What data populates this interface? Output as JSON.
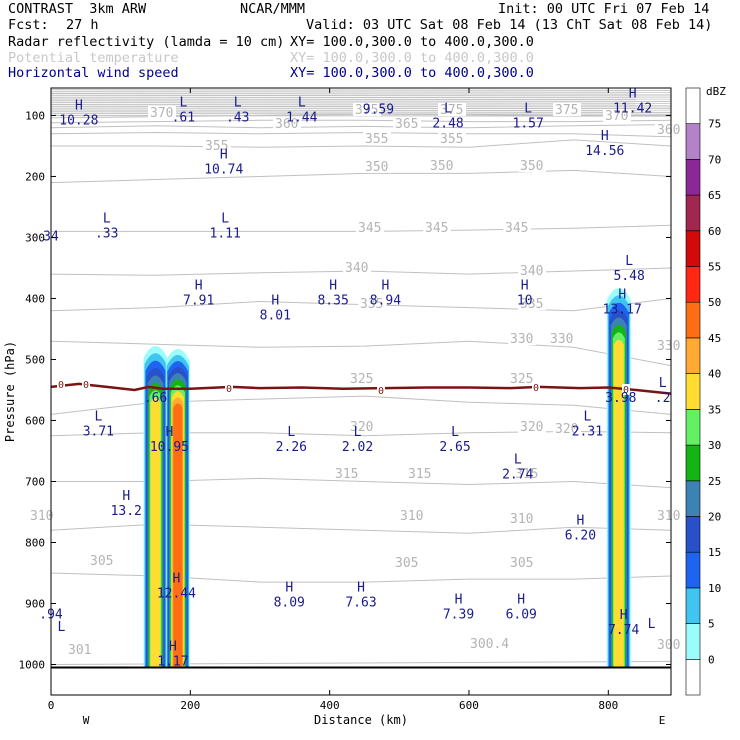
{
  "header": {
    "model": "CONTRAST  3km ARW",
    "org": "NCAR/MMM",
    "init": "Init: 00 UTC Fri 07 Feb 14",
    "fcst_label": "Fcst:",
    "fcst_value": "27 h",
    "valid": "Valid: 03 UTC Sat 08 Feb 14 (13 ChT Sat 08 Feb 14)"
  },
  "fields": [
    {
      "name": "Radar reflectivity (lamda = 10 cm)",
      "xy": "XY= 100.0,300.0 to 400.0,300.0",
      "color": "#000000"
    },
    {
      "name": "Potential temperature",
      "xy": "XY= 100.0,300.0 to 400.0,300.0",
      "color": "#c8c8c8"
    },
    {
      "name": "Horizontal wind speed",
      "xy": "XY= 100.0,300.0 to 400.0,300.0",
      "color": "#00008b"
    }
  ],
  "chart_data": {
    "type": "cross-section",
    "title": "Radar reflectivity, potential temperature, horizontal wind speed",
    "xlabel": "Distance (km)",
    "ylabel": "Pressure (hPa)",
    "xlim": [
      0,
      890
    ],
    "ylim": [
      1050,
      55
    ],
    "x_ticks": [
      0,
      200,
      400,
      600,
      800
    ],
    "y_ticks": [
      100,
      200,
      300,
      400,
      500,
      600,
      700,
      800,
      900,
      1000
    ],
    "west_label": "W",
    "east_label": "E",
    "colorbar": {
      "unit": "dBZ",
      "levels": [
        0,
        5,
        10,
        15,
        20,
        25,
        30,
        35,
        40,
        45,
        50,
        55,
        60,
        65,
        70,
        75
      ],
      "colors": [
        "#ffffff",
        "#9bfcfc",
        "#40c4f0",
        "#1e64f0",
        "#2850c8",
        "#3c82b4",
        "#14b414",
        "#64f064",
        "#ffdc32",
        "#ffaa32",
        "#ff6e14",
        "#ff2814",
        "#d20a0a",
        "#a02850",
        "#8c2896",
        "#b482c8",
        "#ffffff"
      ]
    },
    "reflectivity_cells": [
      {
        "x_center": 150,
        "top_hpa": 470,
        "max_dbz": 40
      },
      {
        "x_center": 182,
        "top_hpa": 475,
        "max_dbz": 50
      },
      {
        "x_center": 815,
        "top_hpa": 375,
        "max_dbz": 40
      }
    ],
    "freezing_level": {
      "label": "0",
      "x": [
        0,
        40,
        80,
        120,
        140,
        160,
        200,
        260,
        300,
        360,
        420,
        480,
        540,
        600,
        660,
        700,
        760,
        800,
        840,
        890
      ],
      "p": [
        545,
        540,
        545,
        550,
        545,
        548,
        548,
        545,
        547,
        546,
        548,
        547,
        546,
        546,
        547,
        545,
        547,
        546,
        550,
        556
      ]
    },
    "theta_contours": [
      {
        "label": "300.4",
        "x": [
          0,
          890
        ],
        "p": [
          1000,
          995
        ]
      },
      {
        "label": "305",
        "x": [
          0,
          150,
          300,
          450,
          600,
          750,
          890
        ],
        "p": [
          850,
          855,
          865,
          865,
          860,
          860,
          855
        ]
      },
      {
        "label": "310",
        "x": [
          0,
          150,
          300,
          450,
          600,
          750,
          890
        ],
        "p": [
          780,
          770,
          775,
          780,
          785,
          775,
          780
        ]
      },
      {
        "label": "315",
        "x": [
          0,
          150,
          300,
          450,
          600,
          750,
          890
        ],
        "p": [
          700,
          700,
          695,
          700,
          705,
          700,
          710
        ]
      },
      {
        "label": "320",
        "x": [
          0,
          150,
          300,
          450,
          600,
          750,
          890
        ],
        "p": [
          625,
          620,
          620,
          625,
          620,
          618,
          620
        ]
      },
      {
        "label": "325",
        "x": [
          0,
          150,
          300,
          450,
          600,
          750,
          890
        ],
        "p": [
          590,
          570,
          565,
          560,
          570,
          575,
          590
        ]
      },
      {
        "label": "330",
        "x": [
          0,
          150,
          300,
          450,
          600,
          750,
          890
        ],
        "p": [
          470,
          475,
          480,
          478,
          470,
          480,
          510
        ]
      },
      {
        "label": "335",
        "x": [
          0,
          150,
          300,
          450,
          600,
          750,
          890
        ],
        "p": [
          420,
          415,
          405,
          410,
          415,
          420,
          400
        ]
      },
      {
        "label": "340",
        "x": [
          0,
          150,
          300,
          450,
          600,
          750,
          890
        ],
        "p": [
          360,
          362,
          358,
          355,
          360,
          355,
          350
        ]
      },
      {
        "label": "345",
        "x": [
          0,
          150,
          300,
          450,
          600,
          750,
          890
        ],
        "p": [
          290,
          290,
          290,
          290,
          288,
          285,
          280
        ]
      },
      {
        "label": "350",
        "x": [
          0,
          150,
          300,
          450,
          600,
          750,
          890
        ],
        "p": [
          210,
          205,
          200,
          195,
          195,
          190,
          200
        ]
      },
      {
        "label": "355",
        "x": [
          0,
          150,
          300,
          450,
          600,
          750,
          890
        ],
        "p": [
          150,
          150,
          152,
          150,
          152,
          140,
          150
        ]
      },
      {
        "label": "360",
        "x": [
          0,
          150,
          300,
          450,
          600,
          750,
          890
        ],
        "p": [
          130,
          128,
          130,
          128,
          130,
          130,
          135
        ]
      },
      {
        "label": "365",
        "x": [
          0,
          150,
          300,
          450,
          600,
          750,
          890
        ],
        "p": [
          120,
          117,
          120,
          118,
          120,
          117,
          115
        ]
      },
      {
        "label": "370",
        "x": [
          0,
          150,
          300,
          450,
          600,
          750,
          890
        ],
        "p": [
          112,
          110,
          108,
          108,
          110,
          110,
          108
        ]
      },
      {
        "label": "375",
        "x": [
          0,
          150,
          300,
          450,
          600,
          750,
          890
        ],
        "p": [
          104,
          102,
          100,
          98,
          99,
          100,
          100
        ]
      }
    ],
    "theta_labels_visible": [
      "301",
      "300.4",
      "300",
      "305",
      "305",
      "305",
      "310",
      "310",
      "310",
      "310",
      "315",
      "315",
      "315",
      "320",
      "320",
      "320",
      "325",
      "325",
      "330",
      "330",
      "330",
      "335",
      "335",
      "340",
      "340",
      "345",
      "345",
      "345",
      "350",
      "350",
      "350",
      "355",
      "355",
      "355",
      "360",
      "360",
      "365",
      "370",
      "370",
      "375",
      "375",
      "375"
    ],
    "wind_extrema": [
      {
        "t": "H",
        "v": "10.28",
        "x": 40,
        "p": 105
      },
      {
        "t": "L",
        "v": ".61",
        "x": 190,
        "p": 100
      },
      {
        "t": "L",
        "v": ".43",
        "x": 268,
        "p": 100
      },
      {
        "t": "L",
        "v": "1.44",
        "x": 360,
        "p": 100
      },
      {
        "t": "",
        "v": "9.59",
        "x": 470,
        "p": 87
      },
      {
        "t": "L",
        "v": "2.48",
        "x": 570,
        "p": 110
      },
      {
        "t": "L",
        "v": "1.57",
        "x": 685,
        "p": 110
      },
      {
        "t": "H",
        "v": "11.42",
        "x": 835,
        "p": 85
      },
      {
        "t": "H",
        "v": "14.56",
        "x": 795,
        "p": 155
      },
      {
        "t": "H",
        "v": "10.74",
        "x": 248,
        "p": 185
      },
      {
        "t": "L",
        "v": ".33",
        "x": 80,
        "p": 290
      },
      {
        "t": "",
        "v": "34",
        "x": 0,
        "p": 295
      },
      {
        "t": "L",
        "v": "1.11",
        "x": 250,
        "p": 290
      },
      {
        "t": "L",
        "v": "5.48",
        "x": 830,
        "p": 360
      },
      {
        "t": "H",
        "v": "7.91",
        "x": 212,
        "p": 400
      },
      {
        "t": "H",
        "v": "8.01",
        "x": 322,
        "p": 425
      },
      {
        "t": "H",
        "v": "8.35",
        "x": 405,
        "p": 400
      },
      {
        "t": "H",
        "v": "8.94",
        "x": 480,
        "p": 400
      },
      {
        "t": "H",
        "v": "10",
        "x": 680,
        "p": 400
      },
      {
        "t": "H",
        "v": "13.17",
        "x": 820,
        "p": 415
      },
      {
        "t": "",
        "v": ".66",
        "x": 150,
        "p": 560
      },
      {
        "t": "",
        "v": "3.98",
        "x": 818,
        "p": 560
      },
      {
        "t": "L",
        "v": ".2",
        "x": 878,
        "p": 560
      },
      {
        "t": "L",
        "v": "3.71",
        "x": 68,
        "p": 615
      },
      {
        "t": "H",
        "v": "10.95",
        "x": 170,
        "p": 640
      },
      {
        "t": "L",
        "v": "2.26",
        "x": 345,
        "p": 640
      },
      {
        "t": "L",
        "v": "2.02",
        "x": 440,
        "p": 640
      },
      {
        "t": "L",
        "v": "2.65",
        "x": 580,
        "p": 640
      },
      {
        "t": "L",
        "v": "2.31",
        "x": 770,
        "p": 615
      },
      {
        "t": "L",
        "v": "2.74",
        "x": 670,
        "p": 685
      },
      {
        "t": "H",
        "v": "13.2",
        "x": 108,
        "p": 745
      },
      {
        "t": "H",
        "v": "6.20",
        "x": 760,
        "p": 785
      },
      {
        "t": "H",
        "v": "12.44",
        "x": 180,
        "p": 880
      },
      {
        "t": "H",
        "v": "8.09",
        "x": 342,
        "p": 895
      },
      {
        "t": "H",
        "v": "7.63",
        "x": 445,
        "p": 895
      },
      {
        "t": "",
        "v": ".94",
        "x": 0,
        "p": 915
      },
      {
        "t": "H",
        "v": "7.39",
        "x": 585,
        "p": 915
      },
      {
        "t": "H",
        "v": "6.09",
        "x": 675,
        "p": 915
      },
      {
        "t": "H",
        "v": "7.74",
        "x": 822,
        "p": 940
      },
      {
        "t": "H",
        "v": "1.17",
        "x": 175,
        "p": 992
      },
      {
        "t": "L",
        "v": "",
        "x": 15,
        "p": 960
      },
      {
        "t": "L",
        "v": "",
        "x": 862,
        "p": 955
      }
    ]
  }
}
